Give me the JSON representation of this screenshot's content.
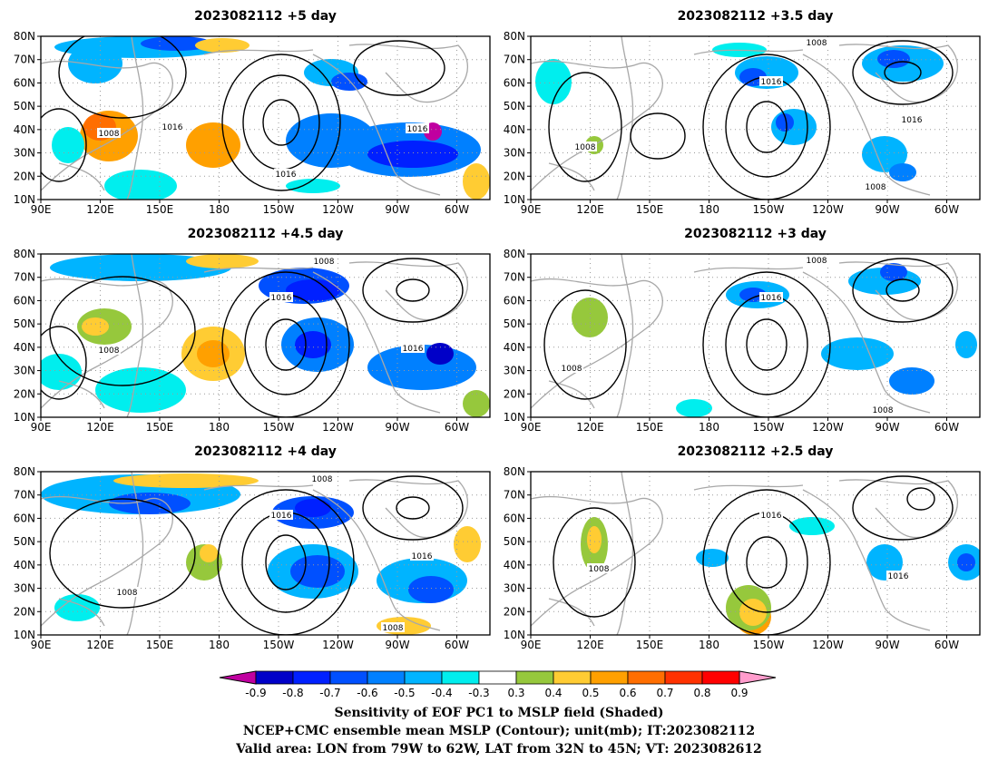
{
  "panels": [
    {
      "title": "2023082112 +5 day",
      "labels": [
        "1016",
        "1016",
        "1016",
        "1008"
      ]
    },
    {
      "title": "2023082112 +3.5 day",
      "labels": [
        "1008",
        "1016",
        "1016",
        "1008",
        "1008"
      ]
    },
    {
      "title": "2023082112 +4.5 day",
      "labels": [
        "1008",
        "1016",
        "1016",
        "1008"
      ]
    },
    {
      "title": "2023082112 +3 day",
      "labels": [
        "1008",
        "1016",
        "1008",
        "1008"
      ]
    },
    {
      "title": "2023082112 +4 day",
      "labels": [
        "1008",
        "1016",
        "1016",
        "1008",
        "1008"
      ]
    },
    {
      "title": "2023082112 +2.5 day",
      "labels": [
        "1016",
        "1016",
        "1008"
      ]
    }
  ],
  "lat_ticks": [
    "80N",
    "70N",
    "60N",
    "50N",
    "40N",
    "30N",
    "20N",
    "10N"
  ],
  "lon_ticks": [
    "90E",
    "120E",
    "150E",
    "180",
    "150W",
    "120W",
    "90W",
    "60W"
  ],
  "colorbar": {
    "levels": [
      "-0.9",
      "-0.8",
      "-0.7",
      "-0.6",
      "-0.5",
      "-0.4",
      "-0.3",
      "0.3",
      "0.4",
      "0.5",
      "0.6",
      "0.7",
      "0.8",
      "0.9"
    ],
    "colors": [
      "#c000a0",
      "#0000c8",
      "#0020ff",
      "#0050ff",
      "#0080ff",
      "#00b4ff",
      "#00eeee",
      "#ffffff",
      "#96c83c",
      "#ffcc33",
      "#ffa000",
      "#ff6e00",
      "#ff3200",
      "#ff0000",
      "#ff9ccc"
    ]
  },
  "captions": {
    "line1": "Sensitivity of EOF PC1 to MSLP field (Shaded)",
    "line2": "NCEP+CMC ensemble mean MSLP (Contour); unit(mb); IT:2023082112",
    "line3": "Valid area: LON from 79W to 62W, LAT from 32N to 45N; VT: 2023082612"
  },
  "map_colors": {
    "coast": "#a8a8a8",
    "contour": "#000000",
    "grid": "#9a9a9a"
  }
}
